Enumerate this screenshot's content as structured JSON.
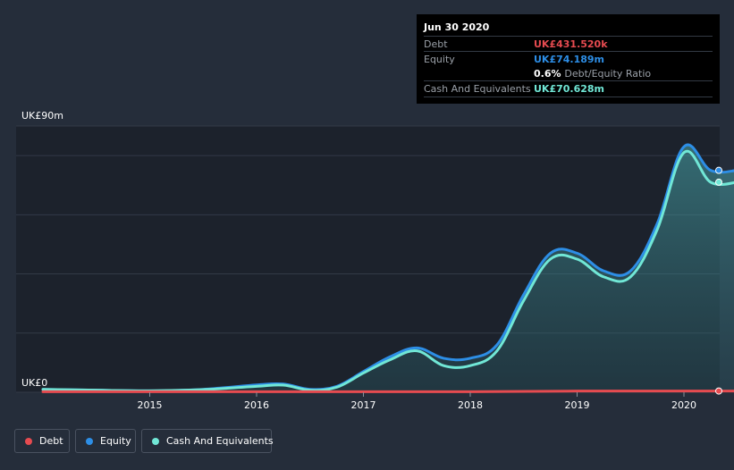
{
  "tooltip": {
    "date": "Jun 30 2020",
    "debt_label": "Debt",
    "debt_value": "UK£431.520k",
    "equity_label": "Equity",
    "equity_value": "UK£74.189m",
    "ratio_value": "0.6%",
    "ratio_label": "Debt/Equity Ratio",
    "cash_label": "Cash And Equivalents",
    "cash_value": "UK£70.628m"
  },
  "legend": [
    {
      "label": "Debt",
      "color": "#e64b50"
    },
    {
      "label": "Equity",
      "color": "#2d8ee6"
    },
    {
      "label": "Cash And Equivalents",
      "color": "#71e7d6"
    }
  ],
  "colors": {
    "background": "#252d3a",
    "plot_background": "#1c222c",
    "debt": "#e64b50",
    "equity": "#2d8ee6",
    "cash": "#71e7d6"
  },
  "chart_data": {
    "type": "area",
    "title": "",
    "xlabel": "",
    "ylabel": "",
    "y_tick_labels": [
      "UK£0",
      "UK£90m"
    ],
    "ylim": [
      0,
      90
    ],
    "x_tick_labels": [
      "2015",
      "2016",
      "2017",
      "2018",
      "2019",
      "2020"
    ],
    "xlim": [
      2014.0,
      2020.5
    ],
    "grid": true,
    "legend_position": "bottom-left",
    "series": [
      {
        "name": "Debt",
        "x": [
          2014.0,
          2015.0,
          2016.0,
          2017.0,
          2018.0,
          2019.0,
          2020.0,
          2020.5
        ],
        "values": [
          0.2,
          0.2,
          0.2,
          0.2,
          0.2,
          0.4,
          0.43,
          0.43
        ]
      },
      {
        "name": "Equity",
        "x": [
          2014.0,
          2014.5,
          2015.0,
          2015.5,
          2016.0,
          2016.25,
          2016.5,
          2016.75,
          2017.0,
          2017.25,
          2017.5,
          2017.75,
          2018.0,
          2018.25,
          2018.5,
          2018.75,
          2019.0,
          2019.25,
          2019.5,
          2019.75,
          2020.0,
          2020.25,
          2020.5
        ],
        "values": [
          1.0,
          0.7,
          0.5,
          1.0,
          2.5,
          2.8,
          1.0,
          2.0,
          7.0,
          12.0,
          15.0,
          11.5,
          11.5,
          16.0,
          33.0,
          47.0,
          47.0,
          41.0,
          41.0,
          57.0,
          83.0,
          75.0,
          75.0
        ]
      },
      {
        "name": "Cash And Equivalents",
        "x": [
          2014.0,
          2014.5,
          2015.0,
          2015.5,
          2016.0,
          2016.25,
          2016.5,
          2016.75,
          2017.0,
          2017.25,
          2017.5,
          2017.75,
          2018.0,
          2018.25,
          2018.5,
          2018.75,
          2019.0,
          2019.25,
          2019.5,
          2019.75,
          2020.0,
          2020.25,
          2020.5
        ],
        "values": [
          1.0,
          0.7,
          0.5,
          0.9,
          2.0,
          2.4,
          0.7,
          1.7,
          6.5,
          11.0,
          14.0,
          9.0,
          9.0,
          14.0,
          31.0,
          45.0,
          45.0,
          39.0,
          39.0,
          55.0,
          81.0,
          71.0,
          71.0
        ]
      }
    ]
  }
}
